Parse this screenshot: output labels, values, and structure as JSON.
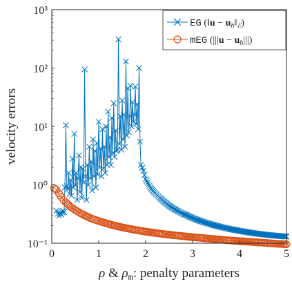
{
  "chart_data": {
    "type": "line",
    "xlabel": "ρ & ρm: penalty parameters",
    "ylabel": "velocity errors",
    "yscale": "log",
    "xlim": [
      0,
      5
    ],
    "ylim": [
      0.1,
      1000
    ],
    "xticks": [
      "0",
      "1",
      "2",
      "3",
      "4",
      "5"
    ],
    "yticks": [
      "10⁻¹",
      "10⁰",
      "10¹",
      "10²",
      "10³"
    ],
    "grid": false,
    "legend_position": "top-right",
    "series": [
      {
        "name": "EG (‖u − uₕ‖ℰ)",
        "color": "#0072bd",
        "marker": "x",
        "points": [
          [
            0.1,
            0.36
          ],
          [
            0.13,
            0.32
          ],
          [
            0.16,
            0.3
          ],
          [
            0.18,
            0.33
          ],
          [
            0.2,
            0.31
          ],
          [
            0.22,
            0.34
          ],
          [
            0.24,
            0.36
          ],
          [
            0.26,
            0.34
          ],
          [
            0.28,
            0.9
          ],
          [
            0.3,
            10.5
          ],
          [
            0.32,
            0.95
          ],
          [
            0.34,
            0.85
          ],
          [
            0.36,
            1.6
          ],
          [
            0.38,
            0.7
          ],
          [
            0.4,
            1.2
          ],
          [
            0.42,
            0.65
          ],
          [
            0.44,
            2.8
          ],
          [
            0.46,
            0.9
          ],
          [
            0.48,
            7.5
          ],
          [
            0.5,
            1.0
          ],
          [
            0.52,
            1.6
          ],
          [
            0.54,
            0.55
          ],
          [
            0.56,
            1.3
          ],
          [
            0.58,
            3.2
          ],
          [
            0.6,
            0.75
          ],
          [
            0.62,
            2.0
          ],
          [
            0.64,
            0.6
          ],
          [
            0.66,
            1.9
          ],
          [
            0.68,
            1.1
          ],
          [
            0.7,
            95
          ],
          [
            0.72,
            1.4
          ],
          [
            0.74,
            0.55
          ],
          [
            0.76,
            2.2
          ],
          [
            0.78,
            1.0
          ],
          [
            0.8,
            4.5
          ],
          [
            0.82,
            1.3
          ],
          [
            0.84,
            2.5
          ],
          [
            0.86,
            0.8
          ],
          [
            0.88,
            6.0
          ],
          [
            0.9,
            1.4
          ],
          [
            0.92,
            3.8
          ],
          [
            0.94,
            0.9
          ],
          [
            0.96,
            5.2
          ],
          [
            0.98,
            1.5
          ],
          [
            1.0,
            12
          ],
          [
            1.02,
            2.0
          ],
          [
            1.04,
            4.2
          ],
          [
            1.06,
            1.4
          ],
          [
            1.08,
            9.0
          ],
          [
            1.1,
            1.9
          ],
          [
            1.12,
            4.5
          ],
          [
            1.14,
            1.6
          ],
          [
            1.16,
            10
          ],
          [
            1.18,
            2.2
          ],
          [
            1.2,
            18
          ],
          [
            1.22,
            3.0
          ],
          [
            1.24,
            6.5
          ],
          [
            1.26,
            2.2
          ],
          [
            1.28,
            14
          ],
          [
            1.3,
            3.5
          ],
          [
            1.32,
            25
          ],
          [
            1.34,
            3.0
          ],
          [
            1.36,
            8.5
          ],
          [
            1.38,
            3.8
          ],
          [
            1.4,
            4.0
          ],
          [
            1.42,
            310
          ],
          [
            1.44,
            5.0
          ],
          [
            1.46,
            15
          ],
          [
            1.48,
            4.0
          ],
          [
            1.5,
            28
          ],
          [
            1.52,
            6.0
          ],
          [
            1.54,
            16
          ],
          [
            1.56,
            4.5
          ],
          [
            1.58,
            130
          ],
          [
            1.6,
            7.0
          ],
          [
            1.62,
            45
          ],
          [
            1.64,
            8.0
          ],
          [
            1.66,
            15
          ],
          [
            1.68,
            50
          ],
          [
            1.7,
            10
          ],
          [
            1.72,
            26
          ],
          [
            1.74,
            12
          ],
          [
            1.76,
            16
          ],
          [
            1.78,
            48
          ],
          [
            1.8,
            11
          ],
          [
            1.82,
            24
          ],
          [
            1.84,
            9
          ],
          [
            1.86,
            100
          ],
          [
            1.88,
            5.5
          ],
          [
            1.9,
            2.2
          ],
          [
            1.95,
            1.75
          ],
          [
            2.0,
            1.25
          ],
          [
            2.1,
            0.9
          ],
          [
            2.2,
            0.72
          ],
          [
            2.3,
            0.6
          ],
          [
            2.4,
            0.51
          ],
          [
            2.5,
            0.44
          ],
          [
            2.6,
            0.39
          ],
          [
            2.7,
            0.35
          ],
          [
            2.8,
            0.32
          ],
          [
            2.9,
            0.295
          ],
          [
            3.0,
            0.27
          ],
          [
            3.2,
            0.235
          ],
          [
            3.4,
            0.21
          ],
          [
            3.6,
            0.19
          ],
          [
            3.8,
            0.175
          ],
          [
            4.0,
            0.163
          ],
          [
            4.2,
            0.153
          ],
          [
            4.4,
            0.145
          ],
          [
            4.6,
            0.139
          ],
          [
            4.8,
            0.134
          ],
          [
            5.0,
            0.13
          ]
        ]
      },
      {
        "name": "mEG (‖u − uₕ‖)",
        "color": "#d95319",
        "marker": "o",
        "points": [
          [
            0.05,
            0.88
          ],
          [
            0.1,
            0.82
          ],
          [
            0.15,
            0.72
          ],
          [
            0.2,
            0.62
          ],
          [
            0.25,
            0.55
          ],
          [
            0.3,
            0.5
          ],
          [
            0.4,
            0.42
          ],
          [
            0.5,
            0.37
          ],
          [
            0.6,
            0.33
          ],
          [
            0.7,
            0.3
          ],
          [
            0.8,
            0.275
          ],
          [
            0.9,
            0.255
          ],
          [
            1.0,
            0.24
          ],
          [
            1.2,
            0.215
          ],
          [
            1.4,
            0.195
          ],
          [
            1.6,
            0.18
          ],
          [
            1.8,
            0.168
          ],
          [
            2.0,
            0.158
          ],
          [
            2.2,
            0.15
          ],
          [
            2.4,
            0.143
          ],
          [
            2.6,
            0.137
          ],
          [
            2.8,
            0.132
          ],
          [
            3.0,
            0.127
          ],
          [
            3.3,
            0.121
          ],
          [
            3.6,
            0.115
          ],
          [
            3.9,
            0.11
          ],
          [
            4.2,
            0.106
          ],
          [
            4.5,
            0.102
          ],
          [
            4.8,
            0.098
          ],
          [
            5.0,
            0.096
          ]
        ]
      }
    ]
  },
  "legend": {
    "eg_method": "EG",
    "meg_method": "mEG"
  }
}
